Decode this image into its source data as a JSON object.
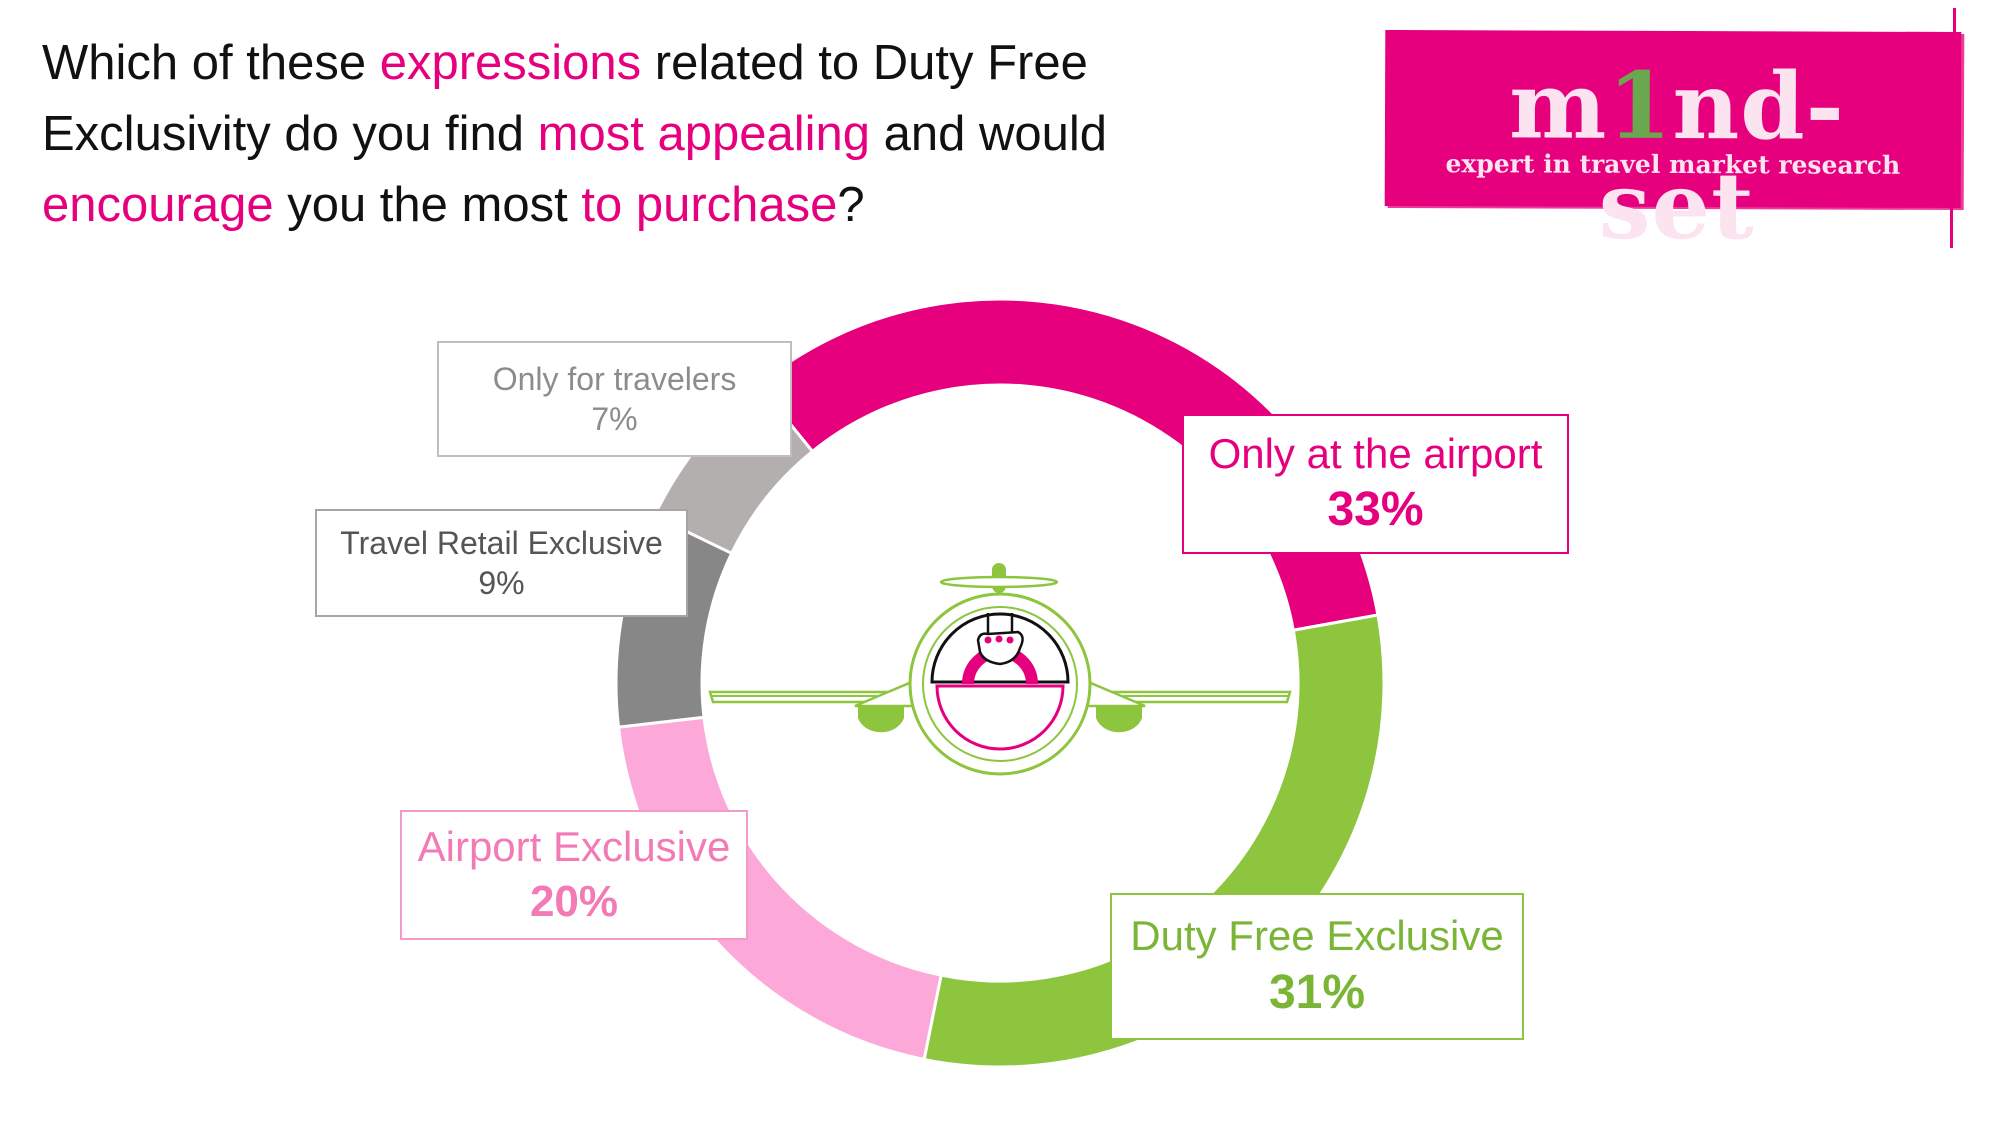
{
  "question": {
    "parts": [
      {
        "text": "Which of these ",
        "highlight": false
      },
      {
        "text": "expressions",
        "highlight": true
      },
      {
        "text": " related to Duty Free Exclusivity do you find ",
        "highlight": false
      },
      {
        "text": "most appealing",
        "highlight": true
      },
      {
        "text": " and would ",
        "highlight": false
      },
      {
        "text": "encourage",
        "highlight": true
      },
      {
        "text": " you the most ",
        "highlight": false
      },
      {
        "text": "to purchase",
        "highlight": true
      },
      {
        "text": "?",
        "highlight": false
      }
    ]
  },
  "logo": {
    "name_start": "m",
    "name_digit": "1",
    "name_end": "nd-set",
    "tagline": "expert in travel market research"
  },
  "colors": {
    "accent": "#e6007e",
    "green": "#8dc53e",
    "light_pink": "#fca8d8",
    "dark_gray": "#878787",
    "light_gray": "#b3afae"
  },
  "chart_data": {
    "type": "pie",
    "style": "donut",
    "title": "",
    "categories": [
      "Only at the airport",
      "Duty Free Exclusive",
      "Airport Exclusive",
      "Travel Retail Exclusive",
      "Only for travelers"
    ],
    "values": [
      33,
      31,
      20,
      9,
      7
    ],
    "value_labels": [
      "33%",
      "31%",
      "20%",
      "9%",
      "7%"
    ],
    "slice_colors": [
      "#e6007e",
      "#8dc53e",
      "#fca8d8",
      "#878787",
      "#b3afae"
    ],
    "center_icon": "airplane-with-hand-icon"
  }
}
